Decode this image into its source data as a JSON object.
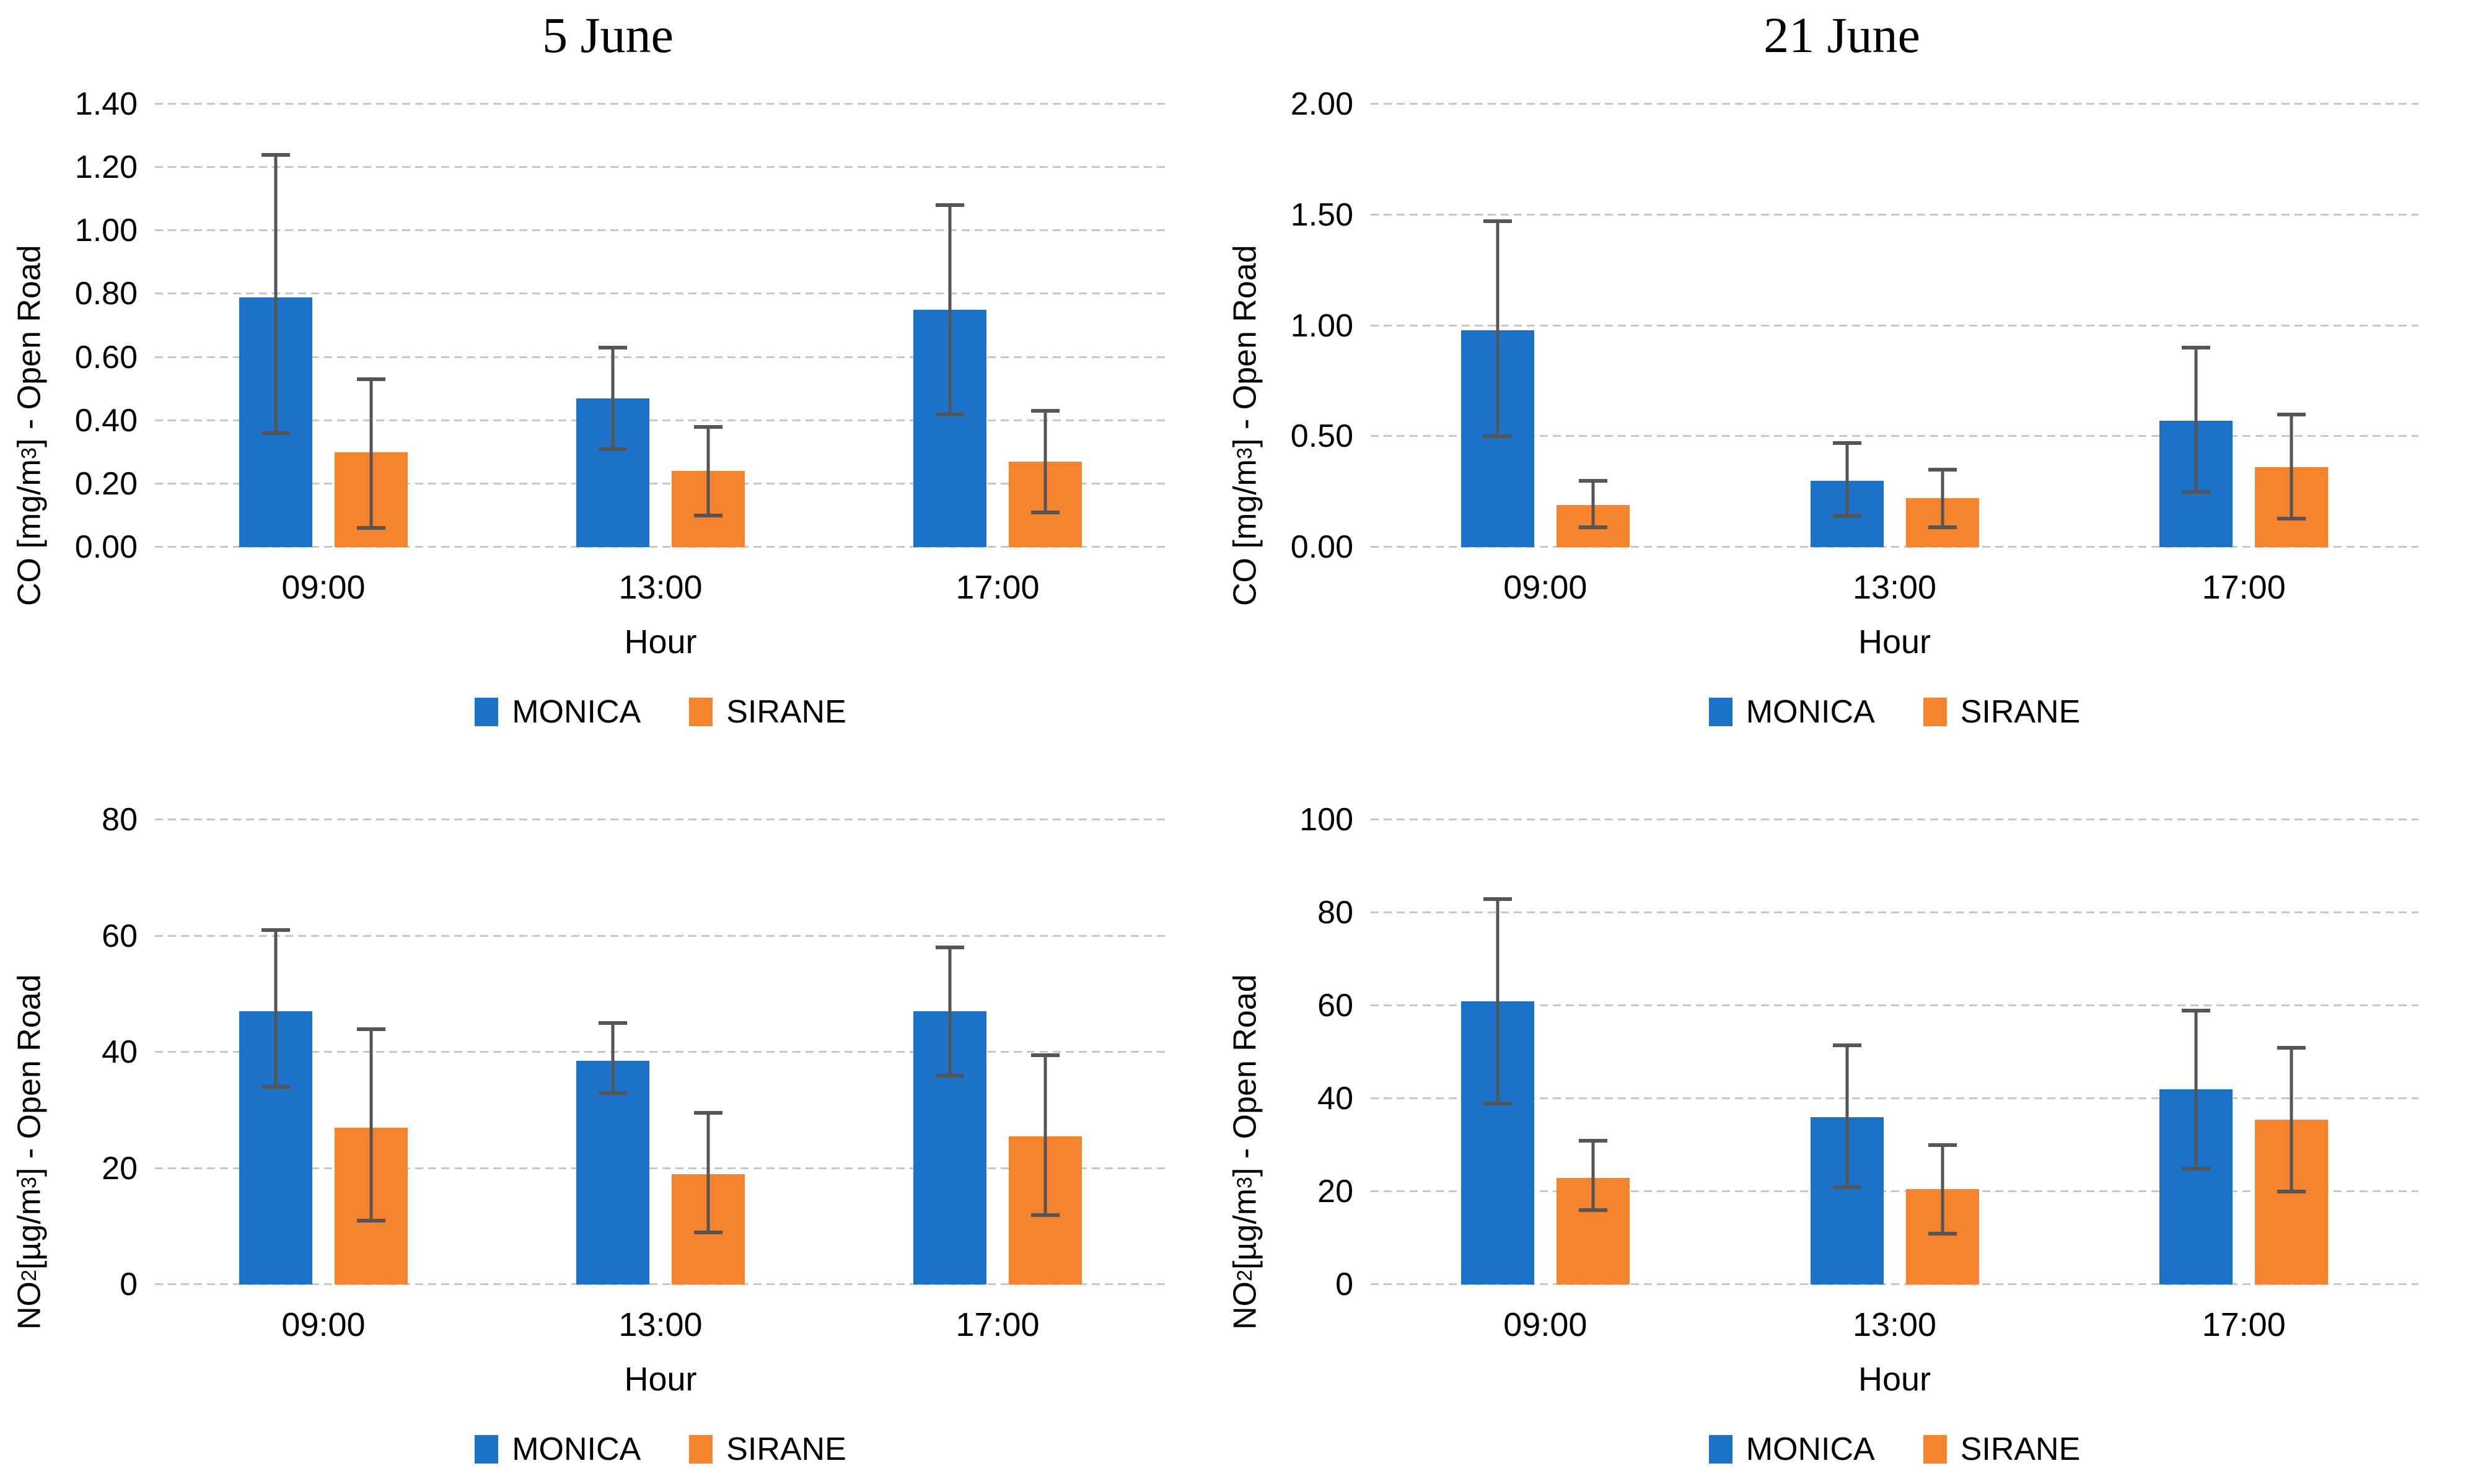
{
  "column_titles": [
    "5 June",
    "21 June"
  ],
  "colors": {
    "monica": "#1B72C8",
    "sirane": "#F5822D",
    "error_bar": "#555555",
    "gridline": "#C8C8C8"
  },
  "chart_data": [
    {
      "id": "co-open-road-5-june",
      "type": "bar",
      "date": "5 June",
      "ylabel_segments": [
        {
          "t": "CO [mg/m"
        },
        {
          "t": "3",
          "sup": true
        },
        {
          "t": "] - Open Road"
        }
      ],
      "xlabel": "Hour",
      "categories": [
        "09:00",
        "13:00",
        "17:00"
      ],
      "ylim": [
        0,
        1.4
      ],
      "ytick_labels": [
        "0.00",
        "0.20",
        "0.40",
        "0.60",
        "0.80",
        "1.00",
        "1.20",
        "1.40"
      ],
      "grid": true,
      "legend_position": "bottom",
      "series": [
        {
          "name": "MONICA",
          "color": "#1B72C8",
          "values": [
            0.79,
            0.47,
            0.75
          ],
          "whisker_low": [
            0.36,
            0.31,
            0.42
          ],
          "whisker_high": [
            1.24,
            0.63,
            1.08
          ]
        },
        {
          "name": "SIRANE",
          "color": "#F5822D",
          "values": [
            0.3,
            0.24,
            0.27
          ],
          "whisker_low": [
            0.06,
            0.1,
            0.11
          ],
          "whisker_high": [
            0.53,
            0.38,
            0.43
          ]
        }
      ]
    },
    {
      "id": "co-open-road-21-june",
      "type": "bar",
      "date": "21 June",
      "ylabel_segments": [
        {
          "t": "CO [mg/m"
        },
        {
          "t": "3",
          "sup": true
        },
        {
          "t": "] - Open Road"
        }
      ],
      "xlabel": "Hour",
      "categories": [
        "09:00",
        "13:00",
        "17:00"
      ],
      "ylim": [
        0,
        2.0
      ],
      "ytick_labels": [
        "0.00",
        "0.50",
        "1.00",
        "1.50",
        "2.00"
      ],
      "grid": true,
      "legend_position": "bottom",
      "series": [
        {
          "name": "MONICA",
          "color": "#1B72C8",
          "values": [
            0.98,
            0.3,
            0.57
          ],
          "whisker_low": [
            0.5,
            0.14,
            0.25
          ],
          "whisker_high": [
            1.47,
            0.47,
            0.9
          ]
        },
        {
          "name": "SIRANE",
          "color": "#F5822D",
          "values": [
            0.19,
            0.22,
            0.36
          ],
          "whisker_low": [
            0.09,
            0.09,
            0.13
          ],
          "whisker_high": [
            0.3,
            0.35,
            0.6
          ]
        }
      ]
    },
    {
      "id": "no2-open-road-5-june",
      "type": "bar",
      "date": "5 June",
      "ylabel_segments": [
        {
          "t": "NO"
        },
        {
          "t": "2",
          "sub": true
        },
        {
          "t": " [µg/m"
        },
        {
          "t": "3",
          "sup": true
        },
        {
          "t": "] - Open Road"
        }
      ],
      "xlabel": "Hour",
      "categories": [
        "09:00",
        "13:00",
        "17:00"
      ],
      "ylim": [
        0,
        80
      ],
      "ytick_labels": [
        "0",
        "20",
        "40",
        "60",
        "80"
      ],
      "grid": true,
      "legend_position": "bottom",
      "series": [
        {
          "name": "MONICA",
          "color": "#1B72C8",
          "values": [
            47,
            38.5,
            47
          ],
          "whisker_low": [
            34,
            33,
            36
          ],
          "whisker_high": [
            61,
            45,
            58
          ]
        },
        {
          "name": "SIRANE",
          "color": "#F5822D",
          "values": [
            27,
            19,
            25.5
          ],
          "whisker_low": [
            11,
            9,
            12
          ],
          "whisker_high": [
            44,
            29.5,
            39.5
          ]
        }
      ]
    },
    {
      "id": "no2-open-road-21-june",
      "type": "bar",
      "date": "21 June",
      "ylabel_segments": [
        {
          "t": "NO"
        },
        {
          "t": "2",
          "sub": true
        },
        {
          "t": " [µg/m"
        },
        {
          "t": "3",
          "sup": true
        },
        {
          "t": "] - Open Road"
        }
      ],
      "xlabel": "Hour",
      "categories": [
        "09:00",
        "13:00",
        "17:00"
      ],
      "ylim": [
        0,
        100
      ],
      "ytick_labels": [
        "0",
        "20",
        "40",
        "60",
        "80",
        "100"
      ],
      "grid": true,
      "legend_position": "bottom",
      "series": [
        {
          "name": "MONICA",
          "color": "#1B72C8",
          "values": [
            61,
            36,
            42
          ],
          "whisker_low": [
            39,
            21,
            25
          ],
          "whisker_high": [
            83,
            51.5,
            59
          ]
        },
        {
          "name": "SIRANE",
          "color": "#F5822D",
          "values": [
            23,
            20.5,
            35.5
          ],
          "whisker_low": [
            16,
            11,
            20
          ],
          "whisker_high": [
            31,
            30,
            51
          ]
        }
      ]
    }
  ]
}
